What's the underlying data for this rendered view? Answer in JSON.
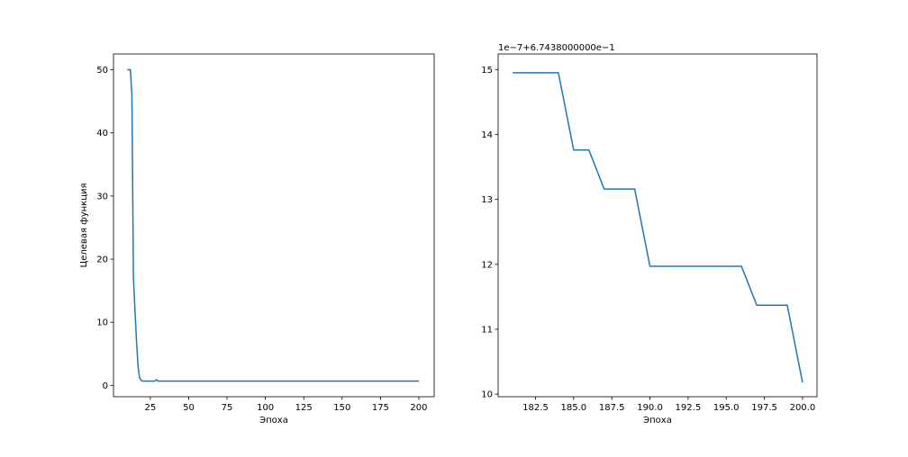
{
  "chart_data": [
    {
      "type": "line",
      "title": "",
      "xlabel": "Эпоха",
      "ylabel": "Целевая функция",
      "xlim": [
        1,
        210
      ],
      "ylim": [
        -1.8,
        52.5
      ],
      "xticks": [
        25,
        50,
        75,
        100,
        125,
        150,
        175,
        200
      ],
      "xtick_labels": [
        "25",
        "50",
        "75",
        "100",
        "125",
        "150",
        "175",
        "200"
      ],
      "yticks": [
        0,
        10,
        20,
        30,
        40,
        50
      ],
      "ytick_labels": [
        "0",
        "10",
        "20",
        "30",
        "40",
        "50"
      ],
      "grid": false,
      "series": [
        {
          "color": "#1f77b4",
          "x": [
            10,
            11,
            12,
            13,
            14,
            15,
            16,
            17,
            18,
            19,
            20,
            21,
            22,
            25,
            28,
            29,
            30,
            200
          ],
          "y": [
            50,
            50,
            50,
            46,
            17,
            12,
            7,
            3,
            1.2,
            0.8,
            0.68,
            0.67,
            0.67,
            0.67,
            0.68,
            0.9,
            0.67,
            0.67
          ]
        }
      ]
    },
    {
      "type": "line",
      "title": "",
      "xlabel": "Эпоха",
      "ylabel": "",
      "offset_text": "1e−7+6.7438000000e−1",
      "xlim": [
        180.05,
        200.95
      ],
      "ylim": [
        9.96,
        15.24
      ],
      "xticks": [
        182.5,
        185,
        187.5,
        190,
        192.5,
        195,
        197.5,
        200
      ],
      "xtick_labels": [
        "182.5",
        "185.0",
        "187.5",
        "190.0",
        "192.5",
        "195.0",
        "197.5",
        "200.0"
      ],
      "yticks": [
        10,
        11,
        12,
        13,
        14,
        15
      ],
      "ytick_labels": [
        "10",
        "11",
        "12",
        "13",
        "14",
        "15"
      ],
      "grid": false,
      "series": [
        {
          "color": "#1f77b4",
          "x": [
            181,
            182,
            183,
            184,
            185,
            186,
            187,
            188,
            189,
            190,
            191,
            192,
            193,
            194,
            195,
            196,
            197,
            198,
            199,
            200
          ],
          "y": [
            14.95,
            14.95,
            14.95,
            14.95,
            13.76,
            13.76,
            13.16,
            13.16,
            13.16,
            11.97,
            11.97,
            11.97,
            11.97,
            11.97,
            11.97,
            11.97,
            11.37,
            11.37,
            11.37,
            10.18
          ]
        }
      ]
    }
  ]
}
